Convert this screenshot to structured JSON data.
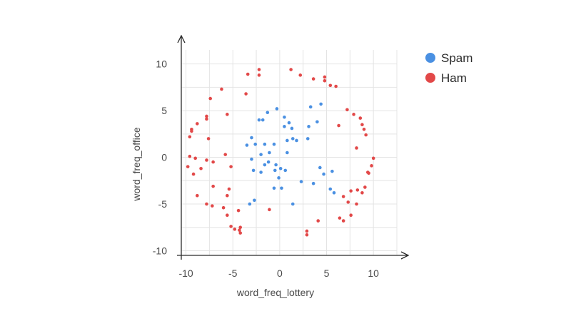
{
  "chart_data": {
    "type": "scatter",
    "title": "",
    "xlabel": "word_freq_lottery",
    "ylabel": "word_freq_office",
    "xlim": [
      -10.5,
      12.5
    ],
    "ylim": [
      -10.5,
      11.5
    ],
    "x_ticks": [
      -10,
      -5,
      0,
      5,
      10
    ],
    "y_ticks": [
      -10,
      -5,
      0,
      5,
      10
    ],
    "x_tick_labels": [
      "-10",
      "-5",
      "0",
      "5",
      "10"
    ],
    "y_tick_labels": [
      "-10",
      "-5",
      "0",
      "5",
      "10"
    ],
    "grid": true,
    "legend_placement": "top-right",
    "series": [
      {
        "name": "Spam",
        "color": "#4a90e2",
        "points": [
          [
            -0.3,
            5.2
          ],
          [
            -1.3,
            4.8
          ],
          [
            -1.8,
            4.0
          ],
          [
            -2.2,
            4.0
          ],
          [
            0.5,
            4.3
          ],
          [
            1.0,
            3.7
          ],
          [
            1.3,
            3.1
          ],
          [
            0.5,
            3.3
          ],
          [
            3.1,
            3.3
          ],
          [
            4.0,
            3.8
          ],
          [
            3.3,
            5.4
          ],
          [
            4.4,
            5.7
          ],
          [
            -3.0,
            2.1
          ],
          [
            -1.6,
            1.4
          ],
          [
            -2.6,
            1.4
          ],
          [
            -3.5,
            1.3
          ],
          [
            0.8,
            1.8
          ],
          [
            -0.6,
            1.4
          ],
          [
            1.8,
            1.8
          ],
          [
            1.4,
            2.0
          ],
          [
            3.0,
            2.0
          ],
          [
            -2.0,
            0.3
          ],
          [
            -1.1,
            0.5
          ],
          [
            0.8,
            0.5
          ],
          [
            -3.0,
            -0.2
          ],
          [
            -1.2,
            -0.5
          ],
          [
            -0.4,
            -0.8
          ],
          [
            0.1,
            -1.2
          ],
          [
            -0.5,
            -1.4
          ],
          [
            -1.6,
            -0.8
          ],
          [
            -2.8,
            -1.4
          ],
          [
            -2.0,
            -1.6
          ],
          [
            0.6,
            -1.4
          ],
          [
            -0.1,
            -2.2
          ],
          [
            -0.6,
            -3.3
          ],
          [
            -2.7,
            -4.6
          ],
          [
            -3.2,
            -5.0
          ],
          [
            1.4,
            -5.0
          ],
          [
            5.6,
            -1.5
          ],
          [
            4.3,
            -1.1
          ],
          [
            4.7,
            -1.8
          ],
          [
            5.4,
            -3.4
          ],
          [
            5.8,
            -3.8
          ],
          [
            3.6,
            -2.8
          ],
          [
            2.3,
            -2.6
          ],
          [
            0.2,
            -3.3
          ]
        ]
      },
      {
        "name": "Ham",
        "color": "#e24848",
        "points": [
          [
            -3.4,
            8.9
          ],
          [
            -2.2,
            9.4
          ],
          [
            -2.2,
            8.8
          ],
          [
            1.2,
            9.4
          ],
          [
            2.2,
            8.8
          ],
          [
            3.6,
            8.4
          ],
          [
            4.8,
            8.6
          ],
          [
            4.8,
            8.2
          ],
          [
            5.4,
            7.7
          ],
          [
            6.0,
            7.6
          ],
          [
            -3.6,
            6.8
          ],
          [
            -6.2,
            7.3
          ],
          [
            -7.4,
            6.3
          ],
          [
            -7.8,
            4.4
          ],
          [
            -7.8,
            4.1
          ],
          [
            -8.8,
            3.6
          ],
          [
            -9.4,
            3.0
          ],
          [
            -9.4,
            2.8
          ],
          [
            -9.6,
            2.2
          ],
          [
            -5.6,
            4.6
          ],
          [
            -7.6,
            2.0
          ],
          [
            7.2,
            5.1
          ],
          [
            7.9,
            4.6
          ],
          [
            8.6,
            4.2
          ],
          [
            8.8,
            3.5
          ],
          [
            6.3,
            3.4
          ],
          [
            9.0,
            3.0
          ],
          [
            9.2,
            2.4
          ],
          [
            8.2,
            1.0
          ],
          [
            -5.8,
            0.3
          ],
          [
            -9.6,
            0.1
          ],
          [
            -9.0,
            -0.1
          ],
          [
            -7.8,
            -0.3
          ],
          [
            -7.1,
            -0.5
          ],
          [
            -5.2,
            -1.0
          ],
          [
            -8.4,
            -1.2
          ],
          [
            -9.8,
            -1.0
          ],
          [
            -9.2,
            -1.8
          ],
          [
            -7.1,
            -3.1
          ],
          [
            -5.4,
            -3.4
          ],
          [
            -8.8,
            -4.1
          ],
          [
            -7.8,
            -5.0
          ],
          [
            -7.2,
            -5.2
          ],
          [
            -6.0,
            -5.4
          ],
          [
            -5.6,
            -4.1
          ],
          [
            -4.4,
            -5.7
          ],
          [
            -5.6,
            -6.2
          ],
          [
            -5.2,
            -7.4
          ],
          [
            -4.8,
            -7.7
          ],
          [
            -4.2,
            -7.5
          ],
          [
            -4.3,
            -7.8
          ],
          [
            -4.2,
            -8.1
          ],
          [
            -1.1,
            -5.6
          ],
          [
            2.9,
            -7.9
          ],
          [
            2.9,
            -8.3
          ],
          [
            4.1,
            -6.8
          ],
          [
            6.4,
            -6.5
          ],
          [
            6.8,
            -6.8
          ],
          [
            7.6,
            -6.2
          ],
          [
            8.2,
            -5.0
          ],
          [
            7.3,
            -4.8
          ],
          [
            6.8,
            -4.2
          ],
          [
            7.6,
            -3.6
          ],
          [
            8.3,
            -3.5
          ],
          [
            8.8,
            -3.8
          ],
          [
            9.1,
            -3.2
          ],
          [
            9.5,
            -1.7
          ],
          [
            9.8,
            -0.9
          ],
          [
            10.0,
            -0.1
          ],
          [
            9.4,
            -1.6
          ]
        ]
      }
    ]
  }
}
